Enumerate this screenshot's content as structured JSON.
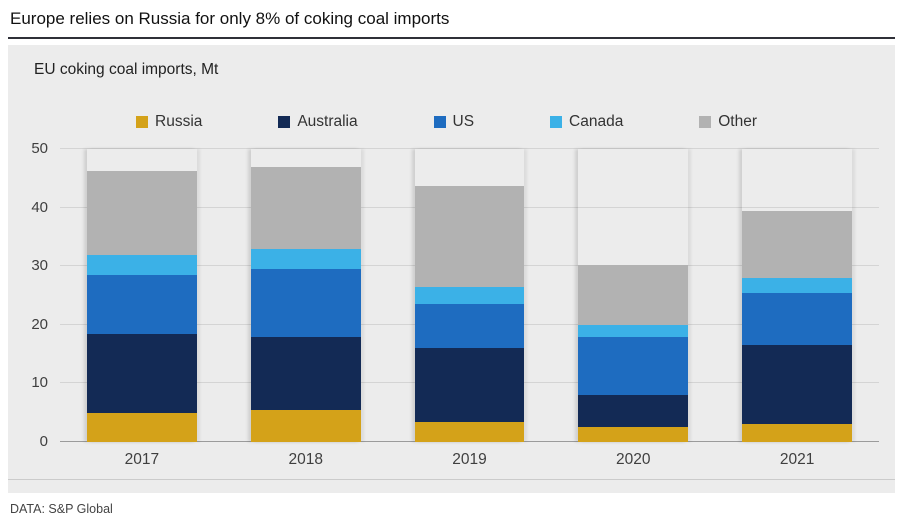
{
  "title": "Europe relies on Russia for only 8% of coking coal imports",
  "subtitle": "EU coking coal imports, Mt",
  "source": "DATA: S&P Global",
  "chart_data": {
    "type": "bar",
    "stacked": true,
    "title": "EU coking coal imports, Mt",
    "xlabel": "",
    "ylabel": "",
    "categories": [
      "2017",
      "2018",
      "2019",
      "2020",
      "2021"
    ],
    "series": [
      {
        "name": "Russia",
        "color": "#d4a219",
        "values": [
          5.0,
          5.5,
          3.5,
          2.5,
          3.0
        ]
      },
      {
        "name": "Australia",
        "color": "#132a55",
        "values": [
          13.5,
          12.5,
          12.5,
          5.5,
          13.5
        ]
      },
      {
        "name": "US",
        "color": "#1e6cc0",
        "values": [
          10.0,
          11.5,
          7.5,
          10.0,
          9.0
        ]
      },
      {
        "name": "Canada",
        "color": "#3bb1e7",
        "values": [
          3.5,
          3.5,
          3.0,
          2.0,
          2.5
        ]
      },
      {
        "name": "Other",
        "color": "#b2b2b2",
        "values": [
          14.2,
          14.0,
          17.2,
          10.2,
          11.5
        ]
      }
    ],
    "totals": [
      46.2,
      47.0,
      43.7,
      30.2,
      39.5
    ],
    "yticks": [
      0,
      10,
      20,
      30,
      40,
      50
    ],
    "ylim": [
      0,
      50
    ],
    "legend_position": "top",
    "grid": true,
    "background": "#ececec"
  }
}
